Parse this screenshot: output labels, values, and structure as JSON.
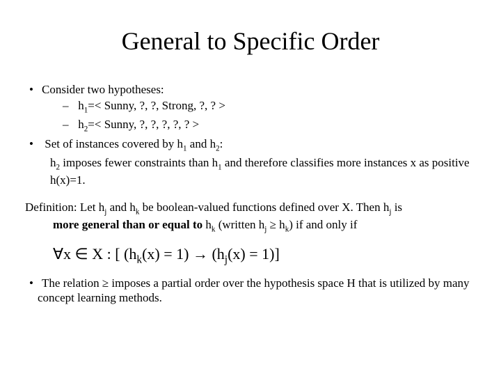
{
  "title": "General to Specific Order",
  "l1_a": "Consider two hypotheses:",
  "l2_a_pre": "h",
  "l2_a_sub": "1",
  "l2_a_post": "=< Sunny, ?, ?, Strong, ?, ? >",
  "l2_b_pre": "h",
  "l2_b_sub": "2",
  "l2_b_post": "=< Sunny, ?, ?, ?, ?, ? >",
  "l1_b_1": "Set of instances covered by h",
  "l1_b_s1": "1",
  "l1_b_2": " and h",
  "l1_b_s2": "2",
  "l1_b_3": ":",
  "sub_1": "h",
  "sub_s1": "2",
  "sub_2": " imposes fewer constraints than h",
  "sub_s2": "1",
  "sub_3": " and therefore classifies more instances x as positive h(x)=1.",
  "def_1": "Definition: Let h",
  "def_s1": "j",
  "def_2": " and h",
  "def_s2": "k",
  "def_3": " be boolean-valued functions defined over X. Then h",
  "def_s3": "j",
  "def_4": " is ",
  "def_bold": "more general than or equal to",
  "def_5": " h",
  "def_s5": "k",
  "def_6": " (written h",
  "def_s6": "j",
  "def_7": " ≥ h",
  "def_s7": "k",
  "def_8": ") if and only if",
  "f_1": "∀x ∈ X : [ (h",
  "f_s1": "k",
  "f_2": "(x) = 1) → (h",
  "f_s2": "j",
  "f_3": "(x) = 1)]",
  "last": "The relation ≥ imposes a partial order over the hypothesis space H that is utilized by many concept learning methods."
}
